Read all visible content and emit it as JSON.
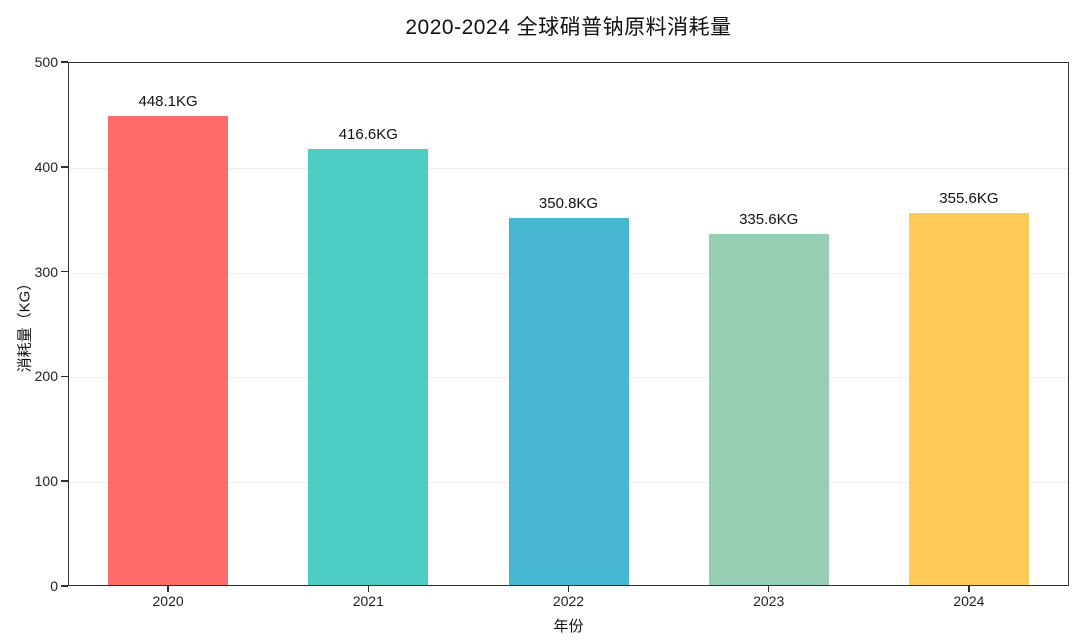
{
  "chart_data": {
    "type": "bar",
    "title": "2020-2024 全球硝普钠原料消耗量",
    "xlabel": "年份",
    "ylabel": "消耗量（KG）",
    "categories": [
      "2020",
      "2021",
      "2022",
      "2023",
      "2024"
    ],
    "values": [
      448.1,
      416.6,
      350.8,
      335.6,
      355.6
    ],
    "value_labels": [
      "448.1KG",
      "416.6KG",
      "350.8KG",
      "335.6KG",
      "355.6KG"
    ],
    "bar_colors": [
      "#FF6B6B",
      "#4ECDC4",
      "#45B7D1",
      "#96CEB4",
      "#FECA57"
    ],
    "ylim": [
      0,
      500
    ],
    "yticks": [
      0,
      100,
      200,
      300,
      400,
      500
    ],
    "grid": "horizontal",
    "legend": "none",
    "colors": {
      "spine": "#2f2f2f",
      "gridline": "#efefef",
      "text": "#111111",
      "background": "#ffffff"
    }
  }
}
